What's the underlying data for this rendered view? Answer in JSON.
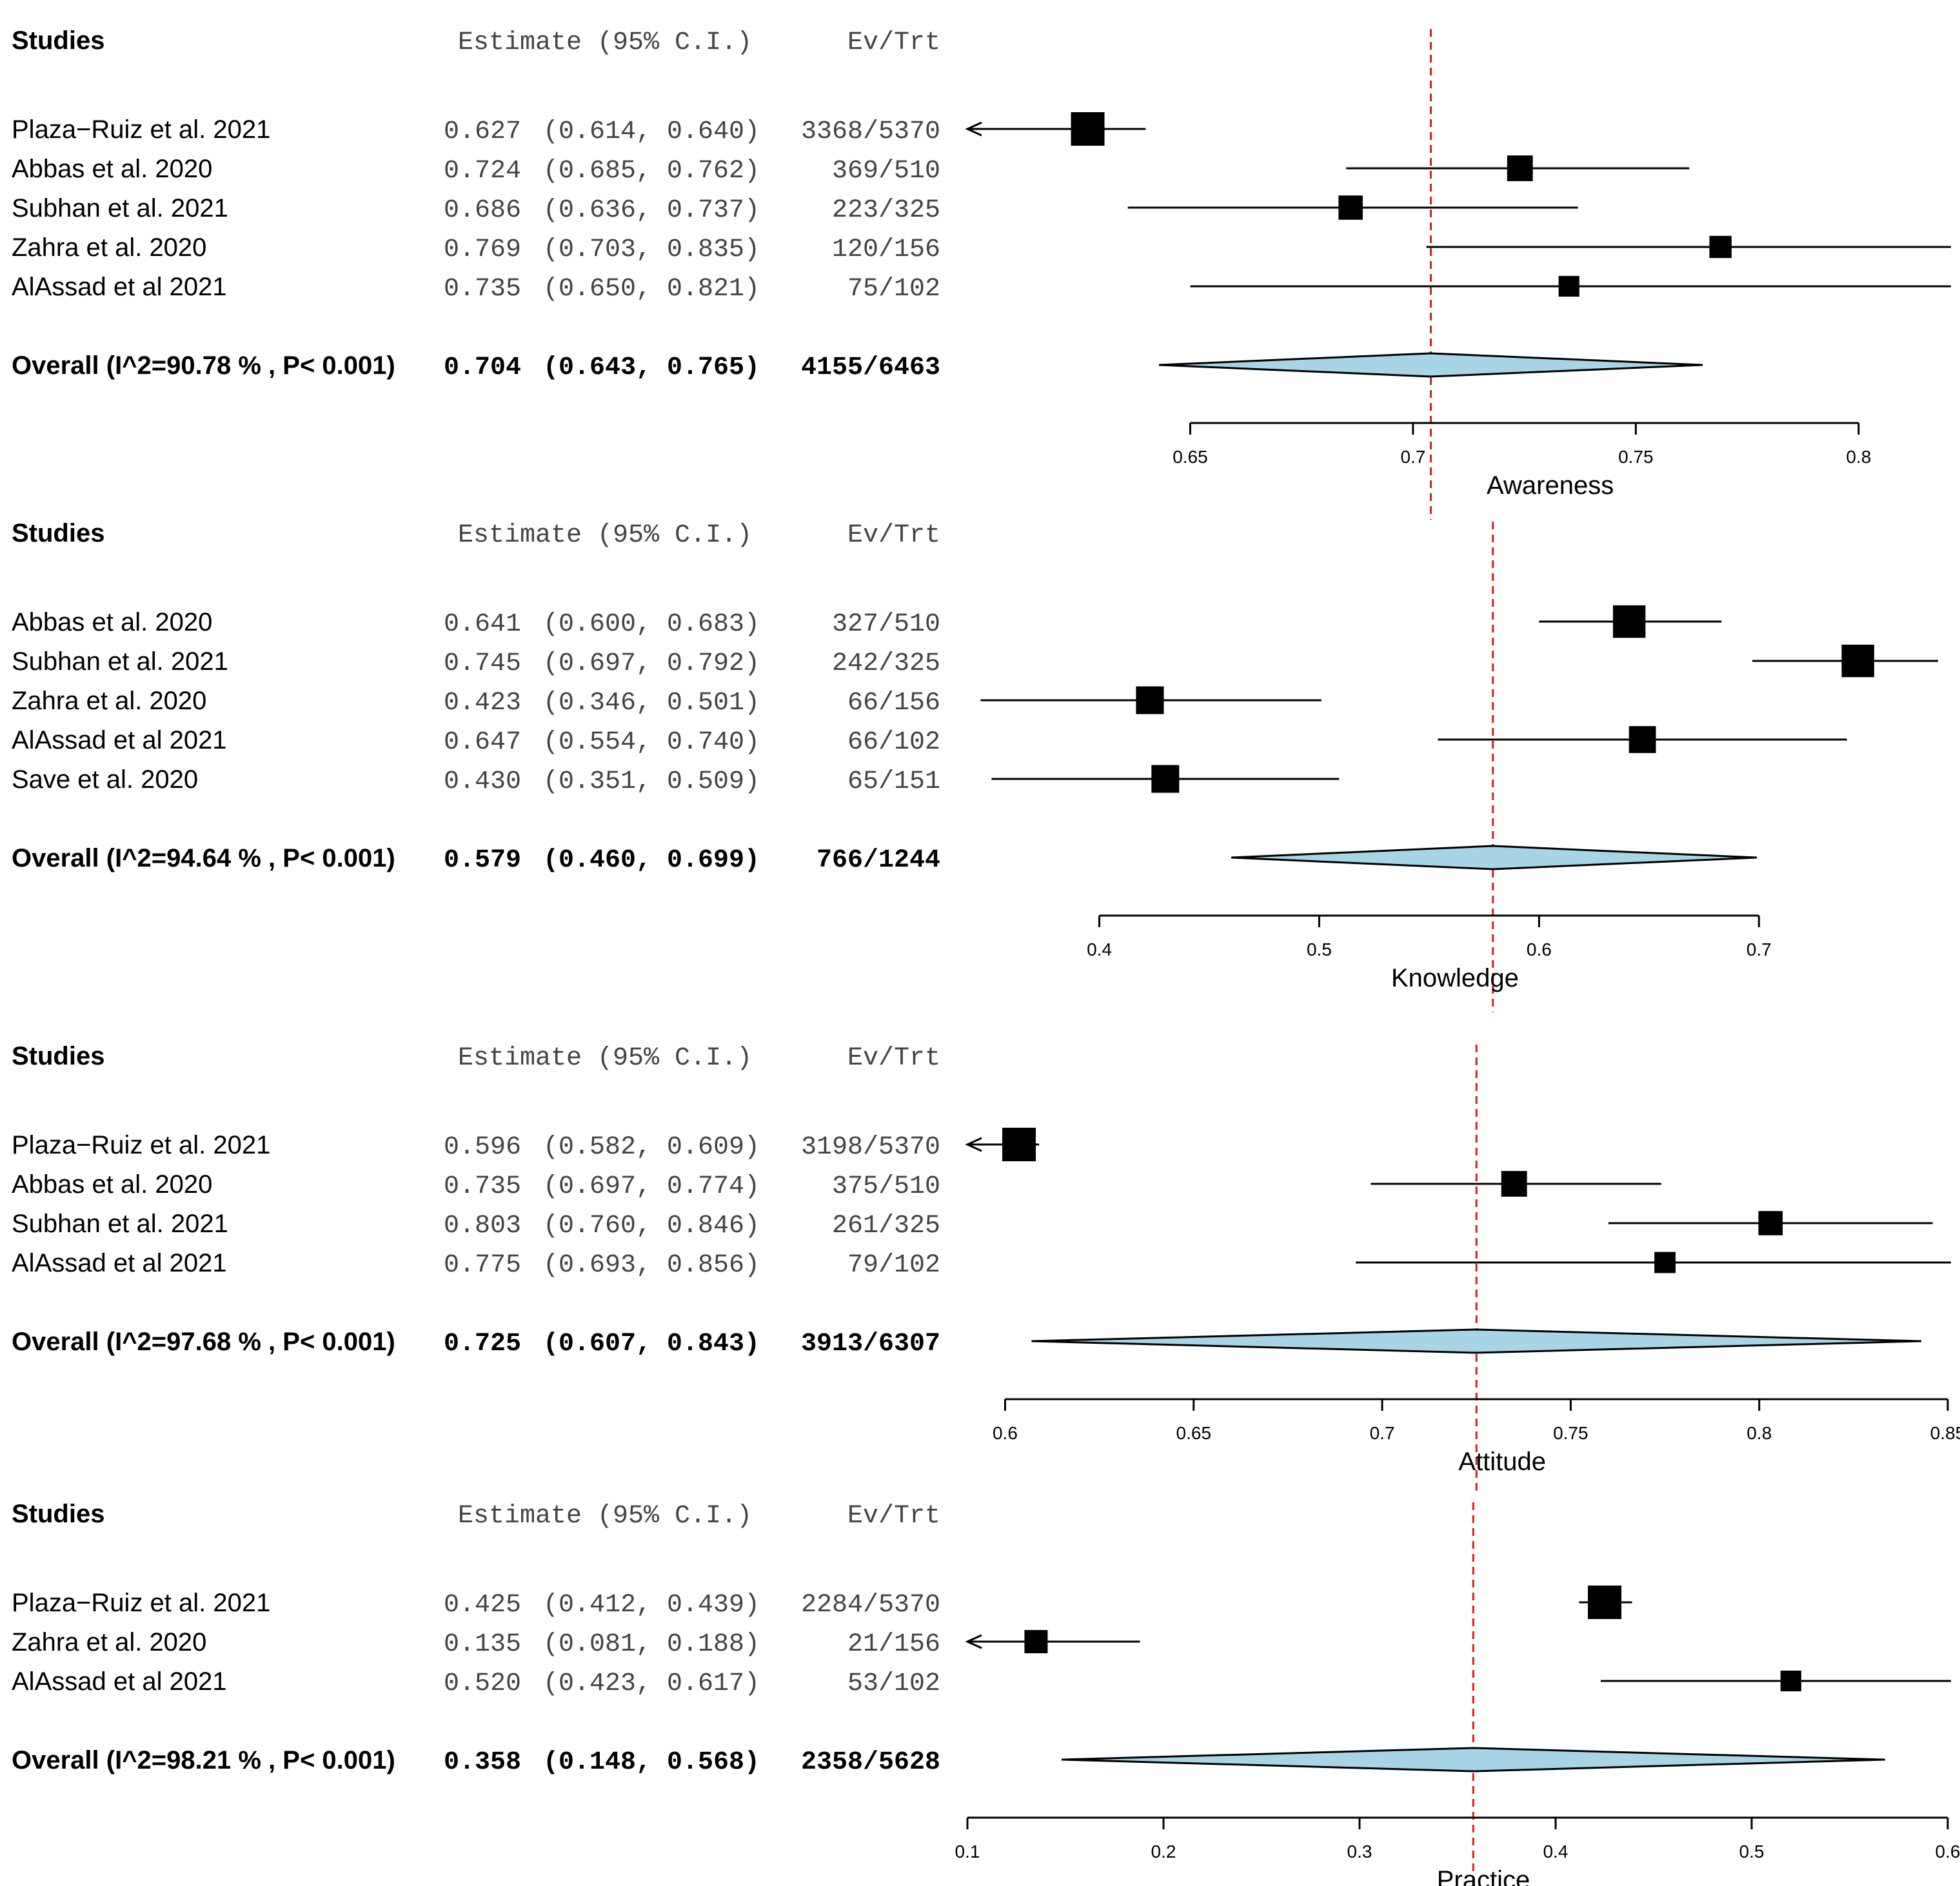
{
  "headers": {
    "studies": "Studies",
    "estimate": "Estimate (95% C.I.)",
    "evtrt": "Ev/Trt"
  },
  "colors": {
    "diamond_fill": "#a8d5e5",
    "ref_line": "#d21f1f",
    "marks": "#000000"
  },
  "chart_data": [
    {
      "type": "forest",
      "xlabel": "Awareness",
      "xlim": [
        0.6,
        0.82
      ],
      "ticks": [
        0.65,
        0.7,
        0.75,
        0.8
      ],
      "tick_labels": [
        "0.65",
        "0.7",
        "0.75",
        "0.8"
      ],
      "axis_range": [
        0.65,
        0.8
      ],
      "reference": 0.704,
      "studies": [
        {
          "name": "Plaza−Ruiz et al. 2021",
          "est": 0.627,
          "lo": 0.614,
          "hi": 0.64,
          "ev": "3368/5370",
          "est_text": "0.627",
          "ci_text": "(0.614, 0.640)",
          "weight": 1.0,
          "clip_left": true,
          "clip_right": false
        },
        {
          "name": "Abbas et al. 2020",
          "est": 0.724,
          "lo": 0.685,
          "hi": 0.762,
          "ev": "369/510",
          "est_text": "0.724",
          "ci_text": "(0.685, 0.762)",
          "weight": 0.62,
          "clip_left": false,
          "clip_right": false
        },
        {
          "name": "Subhan et al. 2021",
          "est": 0.686,
          "lo": 0.636,
          "hi": 0.737,
          "ev": "223/325",
          "est_text": "0.686",
          "ci_text": "(0.636, 0.737)",
          "weight": 0.55,
          "clip_left": false,
          "clip_right": false
        },
        {
          "name": "Zahra et al. 2020",
          "est": 0.769,
          "lo": 0.703,
          "hi": 0.835,
          "ev": "120/156",
          "est_text": "0.769",
          "ci_text": "(0.703, 0.835)",
          "weight": 0.45,
          "clip_left": false,
          "clip_right": true
        },
        {
          "name": "AlAssad et al 2021",
          "est": 0.735,
          "lo": 0.65,
          "hi": 0.821,
          "ev": "75/102",
          "est_text": "0.735",
          "ci_text": "(0.650, 0.821)",
          "weight": 0.38,
          "clip_left": false,
          "clip_right": false
        }
      ],
      "overall": {
        "label": "Overall (I^2=90.78 % , P< 0.001)",
        "est": 0.704,
        "lo": 0.643,
        "hi": 0.765,
        "ev": "4155/6463",
        "est_text": "0.704",
        "ci_text": "(0.643, 0.765)"
      }
    },
    {
      "type": "forest",
      "xlabel": "Knowledge",
      "xlim": [
        0.34,
        0.78
      ],
      "ticks": [
        0.4,
        0.5,
        0.6,
        0.7
      ],
      "tick_labels": [
        "0.4",
        "0.5",
        "0.6",
        "0.7"
      ],
      "axis_range": [
        0.4,
        0.7
      ],
      "reference": 0.579,
      "studies": [
        {
          "name": "Abbas et al. 2020",
          "est": 0.641,
          "lo": 0.6,
          "hi": 0.683,
          "ev": "327/510",
          "est_text": "0.641",
          "ci_text": "(0.600, 0.683)",
          "weight": 0.95,
          "clip_left": false,
          "clip_right": false
        },
        {
          "name": "Subhan et al. 2021",
          "est": 0.745,
          "lo": 0.697,
          "hi": 0.792,
          "ev": "242/325",
          "est_text": "0.745",
          "ci_text": "(0.697, 0.792)",
          "weight": 0.95,
          "clip_left": false,
          "clip_right": false
        },
        {
          "name": "Zahra et al. 2020",
          "est": 0.423,
          "lo": 0.346,
          "hi": 0.501,
          "ev": "66/156",
          "est_text": "0.423",
          "ci_text": "(0.346, 0.501)",
          "weight": 0.72,
          "clip_left": false,
          "clip_right": false
        },
        {
          "name": "AlAssad et al 2021",
          "est": 0.647,
          "lo": 0.554,
          "hi": 0.74,
          "ev": "66/102",
          "est_text": "0.647",
          "ci_text": "(0.554, 0.740)",
          "weight": 0.68,
          "clip_left": false,
          "clip_right": false
        },
        {
          "name": "Save et al. 2020",
          "est": 0.43,
          "lo": 0.351,
          "hi": 0.509,
          "ev": "65/151",
          "est_text": "0.430",
          "ci_text": "(0.351, 0.509)",
          "weight": 0.72,
          "clip_left": false,
          "clip_right": false
        }
      ],
      "overall": {
        "label": "Overall (I^2=94.64 % , P< 0.001)",
        "est": 0.579,
        "lo": 0.46,
        "hi": 0.699,
        "ev": "766/1244",
        "est_text": "0.579",
        "ci_text": "(0.460, 0.699)"
      }
    },
    {
      "type": "forest",
      "xlabel": "Attitude",
      "xlim": [
        0.59,
        0.85
      ],
      "ticks": [
        0.6,
        0.65,
        0.7,
        0.75,
        0.8,
        0.85
      ],
      "tick_labels": [
        "0.6",
        "0.65",
        "0.7",
        "0.75",
        "0.8",
        "0.85"
      ],
      "axis_range": [
        0.6,
        0.85
      ],
      "reference": 0.725,
      "studies": [
        {
          "name": "Plaza−Ruiz et al. 2021",
          "est": 0.596,
          "lo": 0.582,
          "hi": 0.609,
          "ev": "3198/5370",
          "est_text": "0.596",
          "ci_text": "(0.582, 0.609)",
          "weight": 1.0,
          "clip_left": true,
          "clip_right": false
        },
        {
          "name": "Abbas et al. 2020",
          "est": 0.735,
          "lo": 0.697,
          "hi": 0.774,
          "ev": "375/510",
          "est_text": "0.735",
          "ci_text": "(0.697, 0.774)",
          "weight": 0.62,
          "clip_left": false,
          "clip_right": false
        },
        {
          "name": "Subhan et al. 2021",
          "est": 0.803,
          "lo": 0.76,
          "hi": 0.846,
          "ev": "261/325",
          "est_text": "0.803",
          "ci_text": "(0.760, 0.846)",
          "weight": 0.55,
          "clip_left": false,
          "clip_right": false
        },
        {
          "name": "AlAssad et al 2021",
          "est": 0.775,
          "lo": 0.693,
          "hi": 0.856,
          "ev": "79/102",
          "est_text": "0.775",
          "ci_text": "(0.693, 0.856)",
          "weight": 0.4,
          "clip_left": false,
          "clip_right": true
        }
      ],
      "overall": {
        "label": "Overall (I^2=97.68 % , P< 0.001)",
        "est": 0.725,
        "lo": 0.607,
        "hi": 0.843,
        "ev": "3913/6307",
        "est_text": "0.725",
        "ci_text": "(0.607, 0.843)"
      }
    },
    {
      "type": "forest",
      "xlabel": "Practice",
      "xlim": [
        0.1,
        0.6
      ],
      "ticks": [
        0.1,
        0.2,
        0.3,
        0.4,
        0.5,
        0.6
      ],
      "tick_labels": [
        "0.1",
        "0.2",
        "0.3",
        "0.4",
        "0.5",
        "0.6"
      ],
      "axis_range": [
        0.1,
        0.6
      ],
      "reference": 0.358,
      "studies": [
        {
          "name": "Plaza−Ruiz et al. 2021",
          "est": 0.425,
          "lo": 0.412,
          "hi": 0.439,
          "ev": "2284/5370",
          "est_text": "0.425",
          "ci_text": "(0.412, 0.439)",
          "weight": 1.0,
          "clip_left": false,
          "clip_right": false
        },
        {
          "name": "Zahra et al. 2020",
          "est": 0.135,
          "lo": 0.081,
          "hi": 0.188,
          "ev": "21/156",
          "est_text": "0.135",
          "ci_text": "(0.081, 0.188)",
          "weight": 0.5,
          "clip_left": true,
          "clip_right": false
        },
        {
          "name": "AlAssad et al 2021",
          "est": 0.52,
          "lo": 0.423,
          "hi": 0.617,
          "ev": "53/102",
          "est_text": "0.520",
          "ci_text": "(0.423, 0.617)",
          "weight": 0.38,
          "clip_left": false,
          "clip_right": true
        }
      ],
      "overall": {
        "label": "Overall (I^2=98.21 % , P< 0.001)",
        "est": 0.358,
        "lo": 0.148,
        "hi": 0.568,
        "ev": "2358/5628",
        "est_text": "0.358",
        "ci_text": "(0.148, 0.568)"
      }
    }
  ]
}
